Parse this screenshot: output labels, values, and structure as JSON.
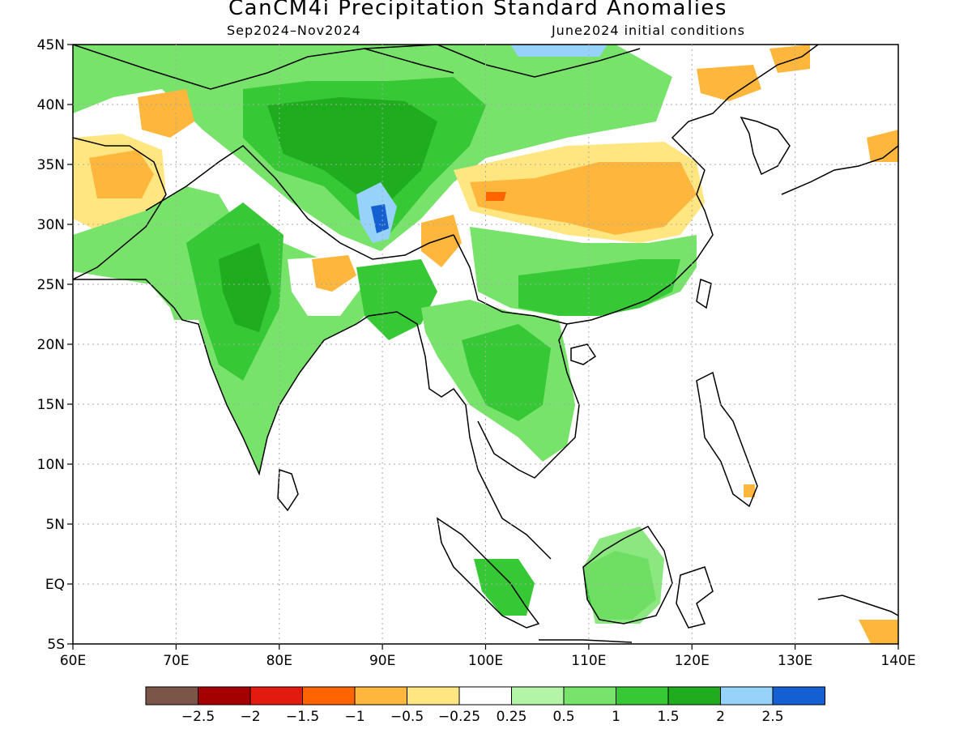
{
  "map": {
    "title": "CanCM4i Precipitation Standard Anomalies",
    "period": "Sep2024–Nov2024",
    "initial_conditions": "June2024 initial conditions",
    "lon_ticks": [
      "60E",
      "70E",
      "80E",
      "90E",
      "100E",
      "110E",
      "120E",
      "130E",
      "140E"
    ],
    "lat_ticks": [
      "45N",
      "40N",
      "35N",
      "30N",
      "25N",
      "20N",
      "15N",
      "10N",
      "5N",
      "EQ",
      "5S"
    ],
    "extent": {
      "lon": [
        60,
        140
      ],
      "lat": [
        -5,
        45
      ]
    }
  },
  "colorbar": {
    "colors": [
      "#7b5547",
      "#a50000",
      "#e31a0e",
      "#ff6400",
      "#ffb63c",
      "#ffe680",
      "#ffffff",
      "#b3f5a6",
      "#78e36a",
      "#37c836",
      "#1fac1e",
      "#96d2fa",
      "#1460d2"
    ],
    "labels": [
      "−2.5",
      "−2",
      "−1.5",
      "−1",
      "−0.5",
      "−0.25",
      "0.25",
      "0.5",
      "1",
      "1.5",
      "2",
      "2.5"
    ]
  }
}
